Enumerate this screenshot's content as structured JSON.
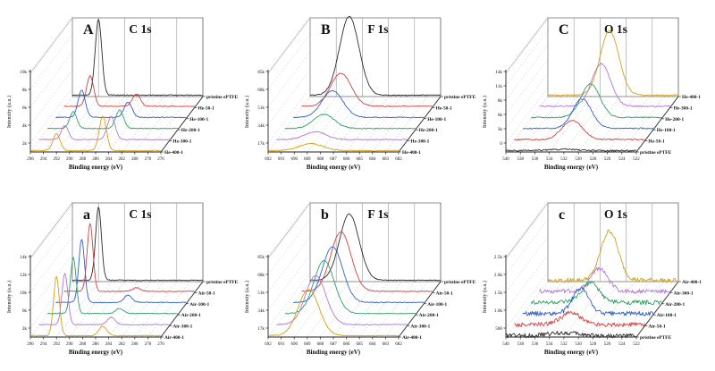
{
  "figure": {
    "description_title": "XPS spectra waterfall panels",
    "xlabel": "Binding energy (eV)",
    "ylabel": "Intensity (a.u.)"
  },
  "chart_data": [
    {
      "type": "line",
      "panel_label": "A",
      "title": "C 1s",
      "xlabel": "Binding energy (eV)",
      "ylabel": "Intensity (a.u.)",
      "x_ticks": [
        "296",
        "294",
        "292",
        "290",
        "288",
        "286",
        "284",
        "282",
        "280",
        "278",
        "276"
      ],
      "x_range": [
        296,
        276
      ],
      "y_ticks": [
        "10k",
        "8k",
        "6k",
        "4k",
        "2k"
      ],
      "amp": 85,
      "noise": 0.006,
      "series": [
        {
          "name": "pristine ePTFE",
          "color": "#2b2b2b",
          "peaks": [
            {
              "c": 292.0,
              "w": 0.5,
              "h": 1.0
            }
          ]
        },
        {
          "name": "He-50-1",
          "color": "#d43f3f",
          "peaks": [
            {
              "c": 292.0,
              "w": 0.55,
              "h": 0.4
            },
            {
              "c": 284.9,
              "w": 0.6,
              "h": 0.16
            }
          ]
        },
        {
          "name": "He-100-1",
          "color": "#3060c8",
          "peaks": [
            {
              "c": 292.0,
              "w": 0.55,
              "h": 0.36
            },
            {
              "c": 284.9,
              "w": 0.6,
              "h": 0.2
            }
          ]
        },
        {
          "name": "He-200-1",
          "color": "#2f9e68",
          "peaks": [
            {
              "c": 292.0,
              "w": 0.55,
              "h": 0.22
            },
            {
              "c": 284.9,
              "w": 0.6,
              "h": 0.24
            }
          ]
        },
        {
          "name": "He-300-1",
          "color": "#b176d9",
          "peaks": [
            {
              "c": 292.0,
              "w": 0.55,
              "h": 0.18
            },
            {
              "c": 284.9,
              "w": 0.6,
              "h": 0.3
            }
          ]
        },
        {
          "name": "He-400-1",
          "color": "#d4a017",
          "peaks": [
            {
              "c": 292.0,
              "w": 0.55,
              "h": 0.22
            },
            {
              "c": 284.9,
              "w": 0.55,
              "h": 0.45
            }
          ]
        }
      ]
    },
    {
      "type": "line",
      "panel_label": "B",
      "title": "F 1s",
      "xlabel": "Binding energy (eV)",
      "ylabel": "Intensity (a.u.)",
      "x_ticks": [
        "692",
        "691",
        "690",
        "689",
        "688",
        "687",
        "686",
        "685",
        "684",
        "683",
        "682"
      ],
      "x_range": [
        692,
        682
      ],
      "y_ticks": [
        "85k",
        "68k",
        "51k",
        "34k",
        "17k"
      ],
      "amp": 88,
      "noise": 0.006,
      "series": [
        {
          "name": "pristine ePTFE",
          "color": "#2b2b2b",
          "peaks": [
            {
              "c": 689.0,
              "w": 0.75,
              "h": 1.0
            }
          ]
        },
        {
          "name": "He-50-1",
          "color": "#d43f3f",
          "peaks": [
            {
              "c": 689.0,
              "w": 0.8,
              "h": 0.42
            }
          ]
        },
        {
          "name": "He-100-1",
          "color": "#3060c8",
          "peaks": [
            {
              "c": 689.0,
              "w": 0.8,
              "h": 0.34
            }
          ]
        },
        {
          "name": "He-200-1",
          "color": "#2f9e68",
          "peaks": [
            {
              "c": 689.0,
              "w": 0.8,
              "h": 0.18
            }
          ]
        },
        {
          "name": "He-300-1",
          "color": "#b176d9",
          "peaks": [
            {
              "c": 689.0,
              "w": 0.8,
              "h": 0.1
            }
          ]
        },
        {
          "name": "He-400-1",
          "color": "#d4a017",
          "peaks": [
            {
              "c": 688.7,
              "w": 0.9,
              "h": 0.09
            }
          ]
        }
      ]
    },
    {
      "type": "line",
      "panel_label": "C",
      "title": "O 1s",
      "xlabel": "Binding energy (eV)",
      "ylabel": "Intensity (a.u.)",
      "x_ticks": [
        "540",
        "538",
        "536",
        "534",
        "532",
        "530",
        "528",
        "526",
        "524",
        "522"
      ],
      "x_range": [
        540,
        522
      ],
      "y_ticks": [
        "14k",
        "11k",
        "8k",
        "6k",
        "3k",
        "0"
      ],
      "amp": 72,
      "noise": 0.01,
      "series": [
        {
          "name": "He-400-1",
          "color": "#d4a017",
          "peaks": [
            {
              "c": 531.5,
              "w": 1.3,
              "h": 1.0
            }
          ]
        },
        {
          "name": "He-300-1",
          "color": "#b176d9",
          "peaks": [
            {
              "c": 531.5,
              "w": 1.3,
              "h": 0.66
            }
          ]
        },
        {
          "name": "He-200-1",
          "color": "#2f9e68",
          "peaks": [
            {
              "c": 531.8,
              "w": 1.3,
              "h": 0.52
            }
          ]
        },
        {
          "name": "He-100-1",
          "color": "#3060c8",
          "peaks": [
            {
              "c": 531.8,
              "w": 1.3,
              "h": 0.46
            }
          ]
        },
        {
          "name": "He-50-1",
          "color": "#d43f3f",
          "peaks": [
            {
              "c": 532.0,
              "w": 1.4,
              "h": 0.3
            }
          ]
        },
        {
          "name": "pristine ePTFE",
          "color": "#2b2b2b",
          "peaks": [
            {
              "c": 532.0,
              "w": 2.0,
              "h": 0.02
            }
          ]
        }
      ]
    },
    {
      "type": "line",
      "panel_label": "a",
      "title": "C 1s",
      "xlabel": "Binding energy (eV)",
      "ylabel": "Intensity (a.u.)",
      "x_ticks": [
        "296",
        "294",
        "292",
        "290",
        "288",
        "286",
        "284",
        "282",
        "280",
        "278",
        "276"
      ],
      "x_range": [
        296,
        276
      ],
      "y_ticks": [
        "14k",
        "12k",
        "10k",
        "6k",
        "2k"
      ],
      "amp": 82,
      "noise": 0.006,
      "series": [
        {
          "name": "pristine ePTFE",
          "color": "#2b2b2b",
          "peaks": [
            {
              "c": 292.0,
              "w": 0.45,
              "h": 1.0
            }
          ]
        },
        {
          "name": "Air-50-1",
          "color": "#d43f3f",
          "peaks": [
            {
              "c": 292.0,
              "w": 0.45,
              "h": 0.92
            },
            {
              "c": 284.9,
              "w": 0.6,
              "h": 0.05
            }
          ]
        },
        {
          "name": "Air-100-1",
          "color": "#3060c8",
          "peaks": [
            {
              "c": 292.0,
              "w": 0.45,
              "h": 0.86
            },
            {
              "c": 284.9,
              "w": 0.6,
              "h": 0.1
            }
          ]
        },
        {
          "name": "Air-200-1",
          "color": "#2f9e68",
          "peaks": [
            {
              "c": 292.0,
              "w": 0.45,
              "h": 0.76
            },
            {
              "c": 284.9,
              "w": 0.6,
              "h": 0.07
            }
          ]
        },
        {
          "name": "Air-300-1",
          "color": "#b176d9",
          "peaks": [
            {
              "c": 292.0,
              "w": 0.45,
              "h": 0.7
            },
            {
              "c": 284.9,
              "w": 0.6,
              "h": 0.1
            }
          ]
        },
        {
          "name": "Air-400-1",
          "color": "#d4a017",
          "peaks": [
            {
              "c": 292.0,
              "w": 0.45,
              "h": 0.8
            },
            {
              "c": 284.9,
              "w": 0.6,
              "h": 0.13
            }
          ]
        }
      ]
    },
    {
      "type": "line",
      "panel_label": "b",
      "title": "F 1s",
      "xlabel": "Binding energy (eV)",
      "ylabel": "Intensity (a.u.)",
      "x_ticks": [
        "692",
        "691",
        "690",
        "689",
        "688",
        "687",
        "686",
        "685",
        "684",
        "683",
        "682"
      ],
      "x_range": [
        692,
        682
      ],
      "y_ticks": [
        "85k",
        "68k",
        "51k",
        "34k",
        "17k"
      ],
      "amp": 74,
      "noise": 0.006,
      "series": [
        {
          "name": "pristine ePTFE",
          "color": "#2b2b2b",
          "peaks": [
            {
              "c": 689.0,
              "w": 0.75,
              "h": 1.0
            }
          ]
        },
        {
          "name": "Air-50-1",
          "color": "#d43f3f",
          "peaks": [
            {
              "c": 689.0,
              "w": 0.78,
              "h": 0.9
            }
          ]
        },
        {
          "name": "Air-100-1",
          "color": "#3060c8",
          "peaks": [
            {
              "c": 689.0,
              "w": 0.78,
              "h": 0.84
            }
          ]
        },
        {
          "name": "Air-200-1",
          "color": "#2f9e68",
          "peaks": [
            {
              "c": 689.0,
              "w": 0.78,
              "h": 0.8
            }
          ]
        },
        {
          "name": "Air-300-1",
          "color": "#b176d9",
          "peaks": [
            {
              "c": 689.0,
              "w": 0.78,
              "h": 0.74
            }
          ]
        },
        {
          "name": "Air-400-1",
          "color": "#d4a017",
          "peaks": [
            {
              "c": 688.9,
              "w": 0.8,
              "h": 0.7
            }
          ]
        }
      ]
    },
    {
      "type": "line",
      "panel_label": "c",
      "title": "O 1s",
      "xlabel": "Binding energy (eV)",
      "ylabel": "Intensity (a.u.)",
      "x_ticks": [
        "540",
        "538",
        "536",
        "534",
        "532",
        "530",
        "528",
        "526",
        "524",
        "522"
      ],
      "x_range": [
        540,
        522
      ],
      "y_ticks": [
        "2.5k",
        "2.0k",
        "1.5k",
        "1.0k",
        "500"
      ],
      "amp": 55,
      "noise": 0.045,
      "series": [
        {
          "name": "Air-400-1",
          "color": "#d4a017",
          "peaks": [
            {
              "c": 531.5,
              "w": 1.2,
              "h": 1.0
            }
          ]
        },
        {
          "name": "Air-300-1",
          "color": "#b176d9",
          "peaks": [
            {
              "c": 531.8,
              "w": 1.2,
              "h": 0.46
            }
          ]
        },
        {
          "name": "Air-200-1",
          "color": "#2f9e68",
          "peaks": [
            {
              "c": 531.8,
              "w": 1.2,
              "h": 0.4
            }
          ]
        },
        {
          "name": "Air-100-1",
          "color": "#3060c8",
          "peaks": [
            {
              "c": 532.0,
              "w": 1.1,
              "h": 0.52
            }
          ]
        },
        {
          "name": "Air-50-1",
          "color": "#d43f3f",
          "peaks": [
            {
              "c": 532.2,
              "w": 1.4,
              "h": 0.24
            }
          ]
        },
        {
          "name": "pristine ePTFE",
          "color": "#2b2b2b",
          "peaks": [
            {
              "c": 532.0,
              "w": 2.0,
              "h": 0.06
            }
          ]
        }
      ]
    }
  ]
}
